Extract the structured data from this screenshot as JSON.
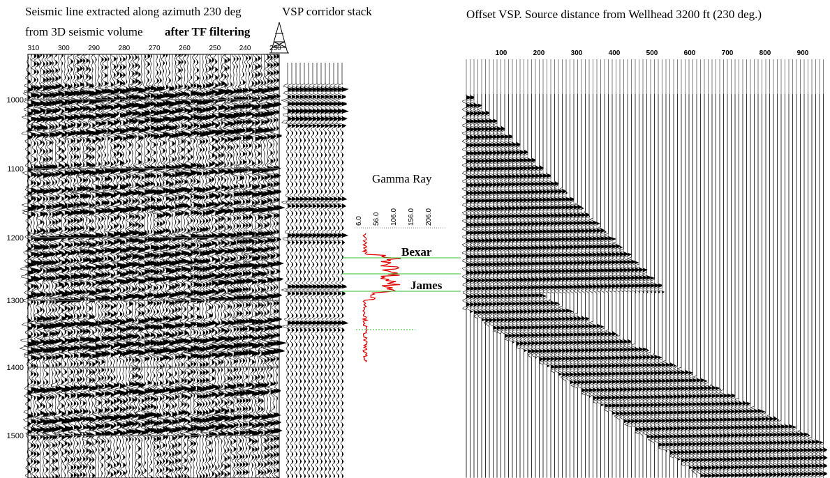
{
  "seismic_line": {
    "title_line_1": "Seismic line extracted along azimuth 230 deg",
    "title_line_2": "from 3D seismic volume",
    "title_bold": "after TF filtering",
    "trace_labels": [
      "310",
      "300",
      "290",
      "280",
      "270",
      "260",
      "250",
      "240",
      "230"
    ]
  },
  "time_axis": {
    "labels": [
      "1000",
      "1100",
      "1200",
      "1300",
      "1400",
      "1500"
    ]
  },
  "corridor_stack": {
    "title": "VSP corridor stack"
  },
  "gamma_ray": {
    "title": "Gamma Ray",
    "scale_labels": [
      "6.0",
      "56.0",
      "106.0",
      "156.0",
      "206.0"
    ],
    "markers": [
      "Bexar",
      "James"
    ]
  },
  "offset_vsp": {
    "title": "Offset VSP.  Source distance from Wellhead 3200 ft (230 deg.)",
    "offset_labels": [
      "100",
      "200",
      "300",
      "400",
      "500",
      "600",
      "700",
      "800",
      "900"
    ]
  }
}
